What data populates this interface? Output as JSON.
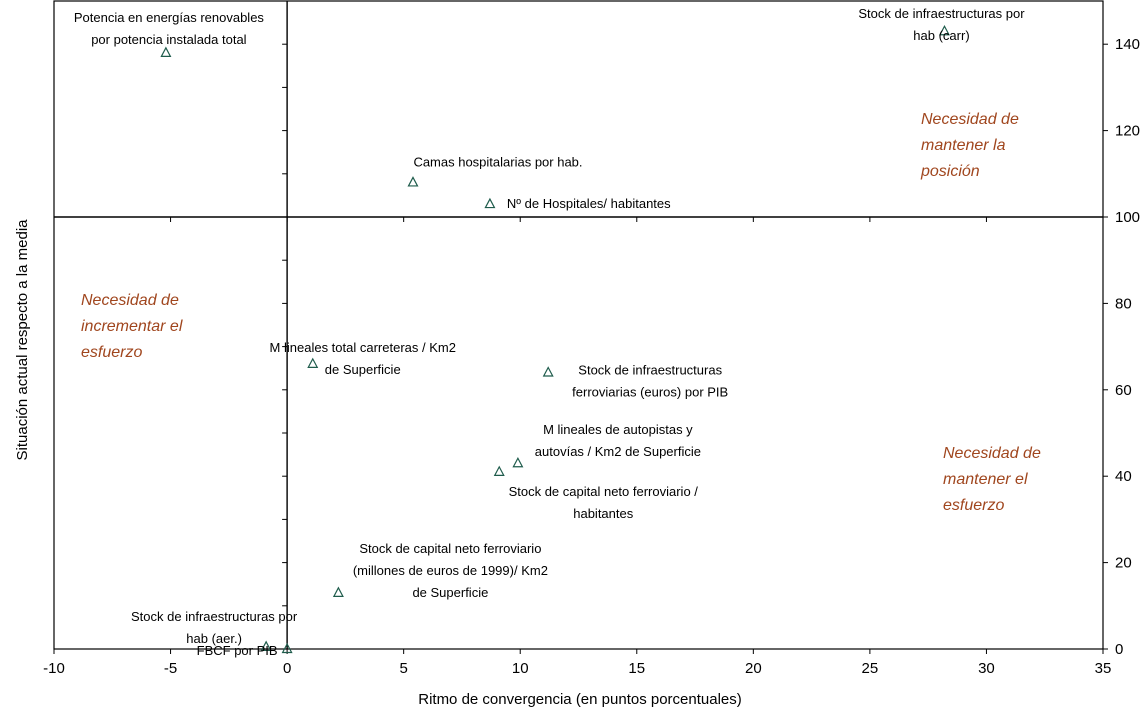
{
  "chart_data": {
    "type": "scatter",
    "xlabel": "Ritmo de convergencia (en puntos porcentuales)",
    "ylabel": "Situación actual respecto a la media",
    "xlim": [
      -10,
      35
    ],
    "ylim": [
      0,
      150
    ],
    "x_ticks": [
      -10,
      -5,
      0,
      5,
      10,
      15,
      20,
      25,
      30,
      35
    ],
    "y_ticks": [
      0,
      20,
      40,
      60,
      80,
      100,
      120,
      140
    ],
    "grid": false,
    "reference_lines": {
      "x": 0,
      "y": 100
    },
    "marker": "triangle",
    "marker_color": "#1f5c4c",
    "quadrant_color": "#a0461e",
    "points": [
      {
        "x": -5.2,
        "y": 138,
        "label": [
          "Potencia en energías renovables",
          "por potencia instalada total"
        ]
      },
      {
        "x": 28.2,
        "y": 143,
        "label": [
          "Stock de infraestructuras por",
          "hab (carr)"
        ]
      },
      {
        "x": 5.4,
        "y": 108,
        "label": [
          "Camas hospitalarias por hab."
        ]
      },
      {
        "x": 8.7,
        "y": 103,
        "label": [
          "Nº de Hospitales/ habitantes"
        ]
      },
      {
        "x": 1.1,
        "y": 66,
        "label": [
          "M lineales total carreteras / Km2",
          "de Superficie"
        ]
      },
      {
        "x": 11.2,
        "y": 64,
        "label": [
          "Stock de infraestructuras",
          "ferroviarias (euros) por PIB"
        ]
      },
      {
        "x": 9.9,
        "y": 43,
        "label": [
          "M lineales de autopistas y",
          "autovías / Km2 de Superficie"
        ]
      },
      {
        "x": 9.1,
        "y": 41,
        "label": [
          "Stock de capital neto ferroviario /",
          "habitantes"
        ]
      },
      {
        "x": 2.2,
        "y": 13,
        "label": [
          "Stock de capital neto ferroviario",
          "(millones de euros de 1999)/ Km2",
          "de Superficie"
        ]
      },
      {
        "x": -0.9,
        "y": 0.5,
        "label": [
          "Stock de infraestructuras por",
          "hab (aer.)"
        ]
      },
      {
        "x": 0,
        "y": 0,
        "label": [
          "FBCF por PIB"
        ]
      }
    ],
    "quadrant_labels": [
      {
        "lines": [
          "Necesidad de",
          "mantener la",
          "posición"
        ]
      },
      {
        "lines": [
          "Necesidad de",
          "incrementar el",
          "esfuerzo"
        ]
      },
      {
        "lines": [
          "Necesidad de",
          "mantener el",
          "esfuerzo"
        ]
      }
    ]
  }
}
